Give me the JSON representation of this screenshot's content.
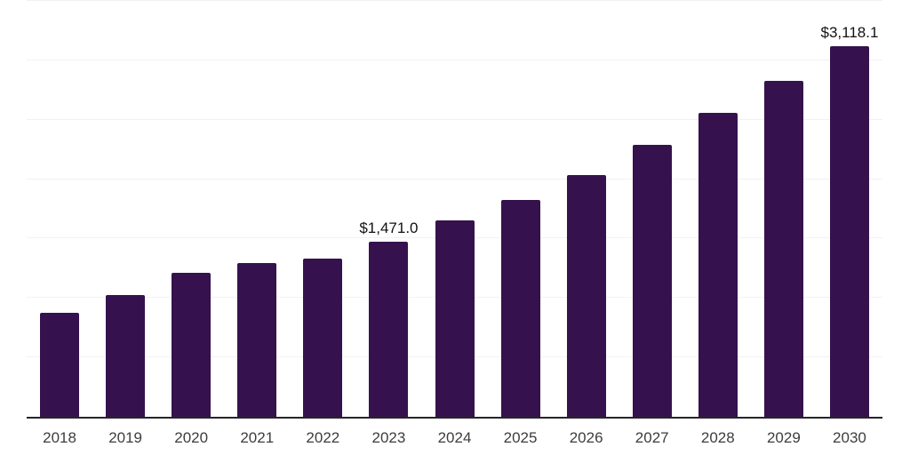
{
  "chart": {
    "background_color": "#ffffff"
  },
  "chart_data": {
    "type": "bar",
    "title": "",
    "xlabel": "",
    "ylabel": "",
    "categories": [
      "2018",
      "2019",
      "2020",
      "2021",
      "2022",
      "2023",
      "2024",
      "2025",
      "2026",
      "2027",
      "2028",
      "2029",
      "2030"
    ],
    "values": [
      875,
      1025,
      1210,
      1293,
      1331,
      1471.0,
      1655,
      1825,
      2035,
      2290,
      2555,
      2825,
      3118.1
    ],
    "value_labels": [
      "",
      "",
      "",
      "",
      "",
      "$1,471.0",
      "",
      "",
      "",
      "",
      "",
      "",
      "$3,118.1"
    ],
    "ylim": [
      0,
      3500
    ],
    "gridline_step": 500,
    "grid": true,
    "legend": false,
    "y_tick_labels_visible": false,
    "bar_color": "#35124d",
    "axis_line_color": "#262626",
    "gridline_color": "#f2f2f2",
    "value_label_color": "#111111",
    "tick_label_color": "#3d3d3d"
  }
}
